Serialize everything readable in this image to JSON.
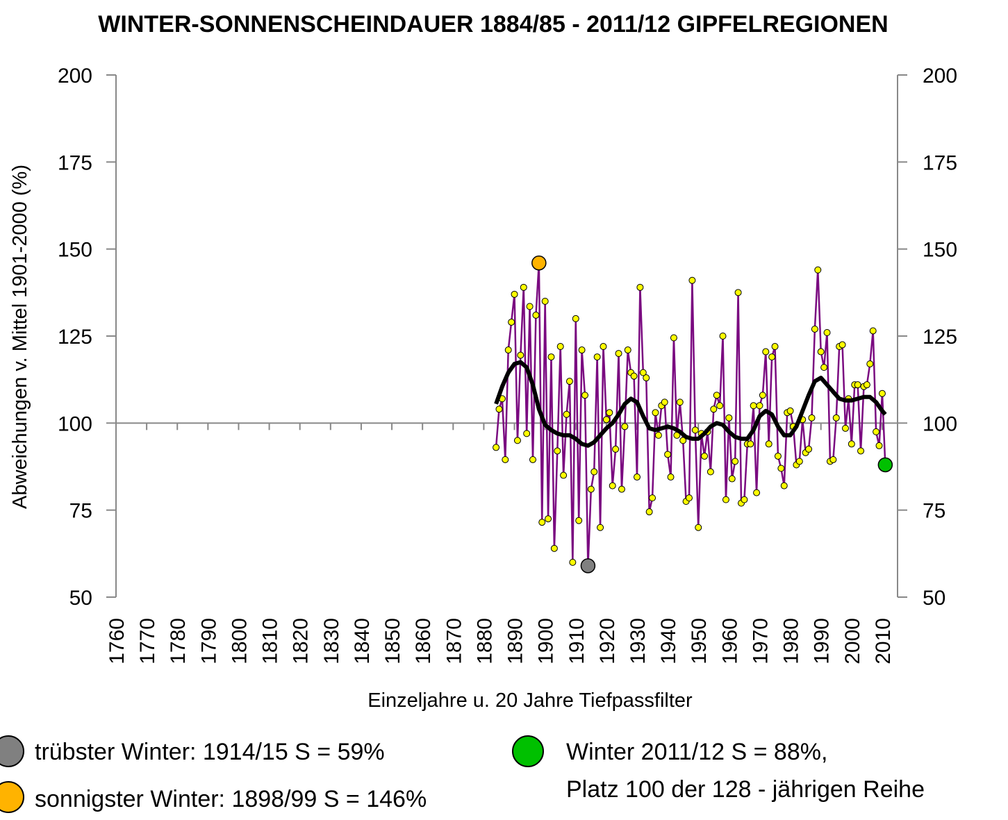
{
  "chart_data": {
    "type": "line",
    "title": "WINTER-SONNENSCHEINDAUER 1884/85 - 2011/12 GIPFELREGIONEN",
    "y_label": "Abweichungen v. Mittel 1901-2000 (%)",
    "x_label": "Einzeljahre u. 20 Jahre Tiefpassfilter",
    "xlim": [
      1760,
      2015
    ],
    "xticks": [
      1760,
      1770,
      1780,
      1790,
      1800,
      1810,
      1820,
      1830,
      1840,
      1850,
      1860,
      1870,
      1880,
      1890,
      1900,
      1910,
      1920,
      1930,
      1940,
      1950,
      1960,
      1970,
      1980,
      1990,
      2000,
      2010
    ],
    "ylim": [
      50,
      200
    ],
    "yticks": [
      50,
      75,
      100,
      125,
      150,
      175,
      200
    ],
    "y2lim": [
      50,
      200
    ],
    "y2ticks": [
      50,
      75,
      100,
      125,
      150,
      175,
      200
    ],
    "x_axis_at": 100,
    "series": [
      {
        "color": "#7a0a80",
        "marker_color": "#ffff00",
        "x": [
          1884,
          1885,
          1886,
          1887,
          1888,
          1889,
          1890,
          1891,
          1892,
          1893,
          1894,
          1895,
          1896,
          1897,
          1898,
          1899,
          1900,
          1901,
          1902,
          1903,
          1904,
          1905,
          1906,
          1907,
          1908,
          1909,
          1910,
          1911,
          1912,
          1913,
          1914,
          1915,
          1916,
          1917,
          1918,
          1919,
          1920,
          1921,
          1922,
          1923,
          1924,
          1925,
          1926,
          1927,
          1928,
          1929,
          1930,
          1931,
          1932,
          1933,
          1934,
          1935,
          1936,
          1937,
          1938,
          1939,
          1940,
          1941,
          1942,
          1943,
          1944,
          1945,
          1946,
          1947,
          1948,
          1949,
          1950,
          1951,
          1952,
          1953,
          1954,
          1955,
          1956,
          1957,
          1958,
          1959,
          1960,
          1961,
          1962,
          1963,
          1964,
          1965,
          1966,
          1967,
          1968,
          1969,
          1970,
          1971,
          1972,
          1973,
          1974,
          1975,
          1976,
          1977,
          1978,
          1979,
          1980,
          1981,
          1982,
          1983,
          1984,
          1985,
          1986,
          1987,
          1988,
          1989,
          1990,
          1991,
          1992,
          1993,
          1994,
          1995,
          1996,
          1997,
          1998,
          1999,
          2000,
          2001,
          2002,
          2003,
          2004,
          2005,
          2006,
          2007,
          2008,
          2009,
          2010,
          2011
        ],
        "values": [
          93,
          104,
          107,
          89.5,
          121,
          129,
          137,
          95,
          119.5,
          139,
          97,
          133.5,
          89.5,
          131,
          146,
          71.5,
          135,
          72.5,
          119,
          64,
          92,
          122,
          85,
          102.5,
          112,
          60,
          130,
          72,
          121,
          108,
          59,
          81,
          86,
          119,
          70,
          122,
          101,
          103,
          82,
          92.5,
          120,
          81,
          99,
          121,
          114.5,
          113.5,
          84.5,
          139,
          114.5,
          113,
          74.5,
          78.5,
          103,
          96.5,
          105,
          106,
          91,
          84.5,
          124.5,
          96.5,
          106,
          95,
          77.5,
          78.5,
          141,
          98,
          70,
          97,
          90.5,
          97.5,
          86,
          104,
          108,
          105,
          125,
          78,
          101.5,
          84,
          89,
          137.5,
          77,
          78,
          94,
          94,
          105,
          80,
          105,
          108,
          120.5,
          94,
          119,
          122,
          90.5,
          87,
          82,
          103,
          103.5,
          99,
          88,
          89,
          101,
          91.5,
          92.5,
          101.5,
          127,
          144,
          120.5,
          116,
          126,
          89,
          89.5,
          101.5,
          122,
          122.5,
          98.5,
          107,
          94,
          111,
          111,
          92,
          110.5,
          111,
          117,
          126.5,
          97.5,
          93.5,
          108.5,
          88
        ]
      },
      {
        "color": "#000000",
        "x": [
          1884,
          1886,
          1888,
          1890,
          1892,
          1894,
          1896,
          1898,
          1900,
          1902,
          1904,
          1906,
          1908,
          1910,
          1912,
          1914,
          1916,
          1918,
          1920,
          1922,
          1924,
          1926,
          1928,
          1930,
          1932,
          1934,
          1936,
          1938,
          1940,
          1942,
          1944,
          1946,
          1948,
          1950,
          1952,
          1954,
          1956,
          1958,
          1960,
          1962,
          1964,
          1966,
          1968,
          1970,
          1972,
          1974,
          1976,
          1978,
          1980,
          1982,
          1984,
          1986,
          1988,
          1990,
          1992,
          1994,
          1996,
          1998,
          2000,
          2002,
          2004,
          2006,
          2008,
          2010,
          2011
        ],
        "values": [
          105.5,
          110.5,
          114.5,
          117,
          117.5,
          116,
          111,
          104,
          99.5,
          98,
          97,
          96.5,
          96.5,
          95.5,
          94,
          93.5,
          94.5,
          96.5,
          98.5,
          100,
          102.5,
          105.5,
          107,
          106,
          102,
          98.5,
          98,
          98.5,
          99,
          98.5,
          97.5,
          96,
          95.5,
          95.5,
          97,
          99,
          100,
          99.5,
          97.5,
          96,
          95.5,
          95.5,
          98,
          102,
          103.5,
          102.5,
          99,
          96.5,
          96.5,
          99,
          103.5,
          108,
          112,
          113,
          111,
          109,
          107,
          106.5,
          106.5,
          107,
          107.5,
          107.5,
          106,
          103.5,
          102.5
        ]
      }
    ],
    "highlights": [
      {
        "index": 30,
        "color": "#808080"
      },
      {
        "index": 14,
        "color": "#ffb300"
      },
      {
        "index": 127,
        "color": "#00c000"
      }
    ],
    "annotations": [
      {
        "text": "trübster Winter: 1914/15  S = 59%",
        "color": "#808080"
      },
      {
        "text": "sonnigster Winter: 1898/99  S = 146%",
        "color": "#ffb300"
      },
      {
        "text": "Winter 2011/12  S = 88%,",
        "color": "#00c000"
      },
      {
        "text": "Platz 100 der 128 - jährigen Reihe"
      }
    ]
  }
}
